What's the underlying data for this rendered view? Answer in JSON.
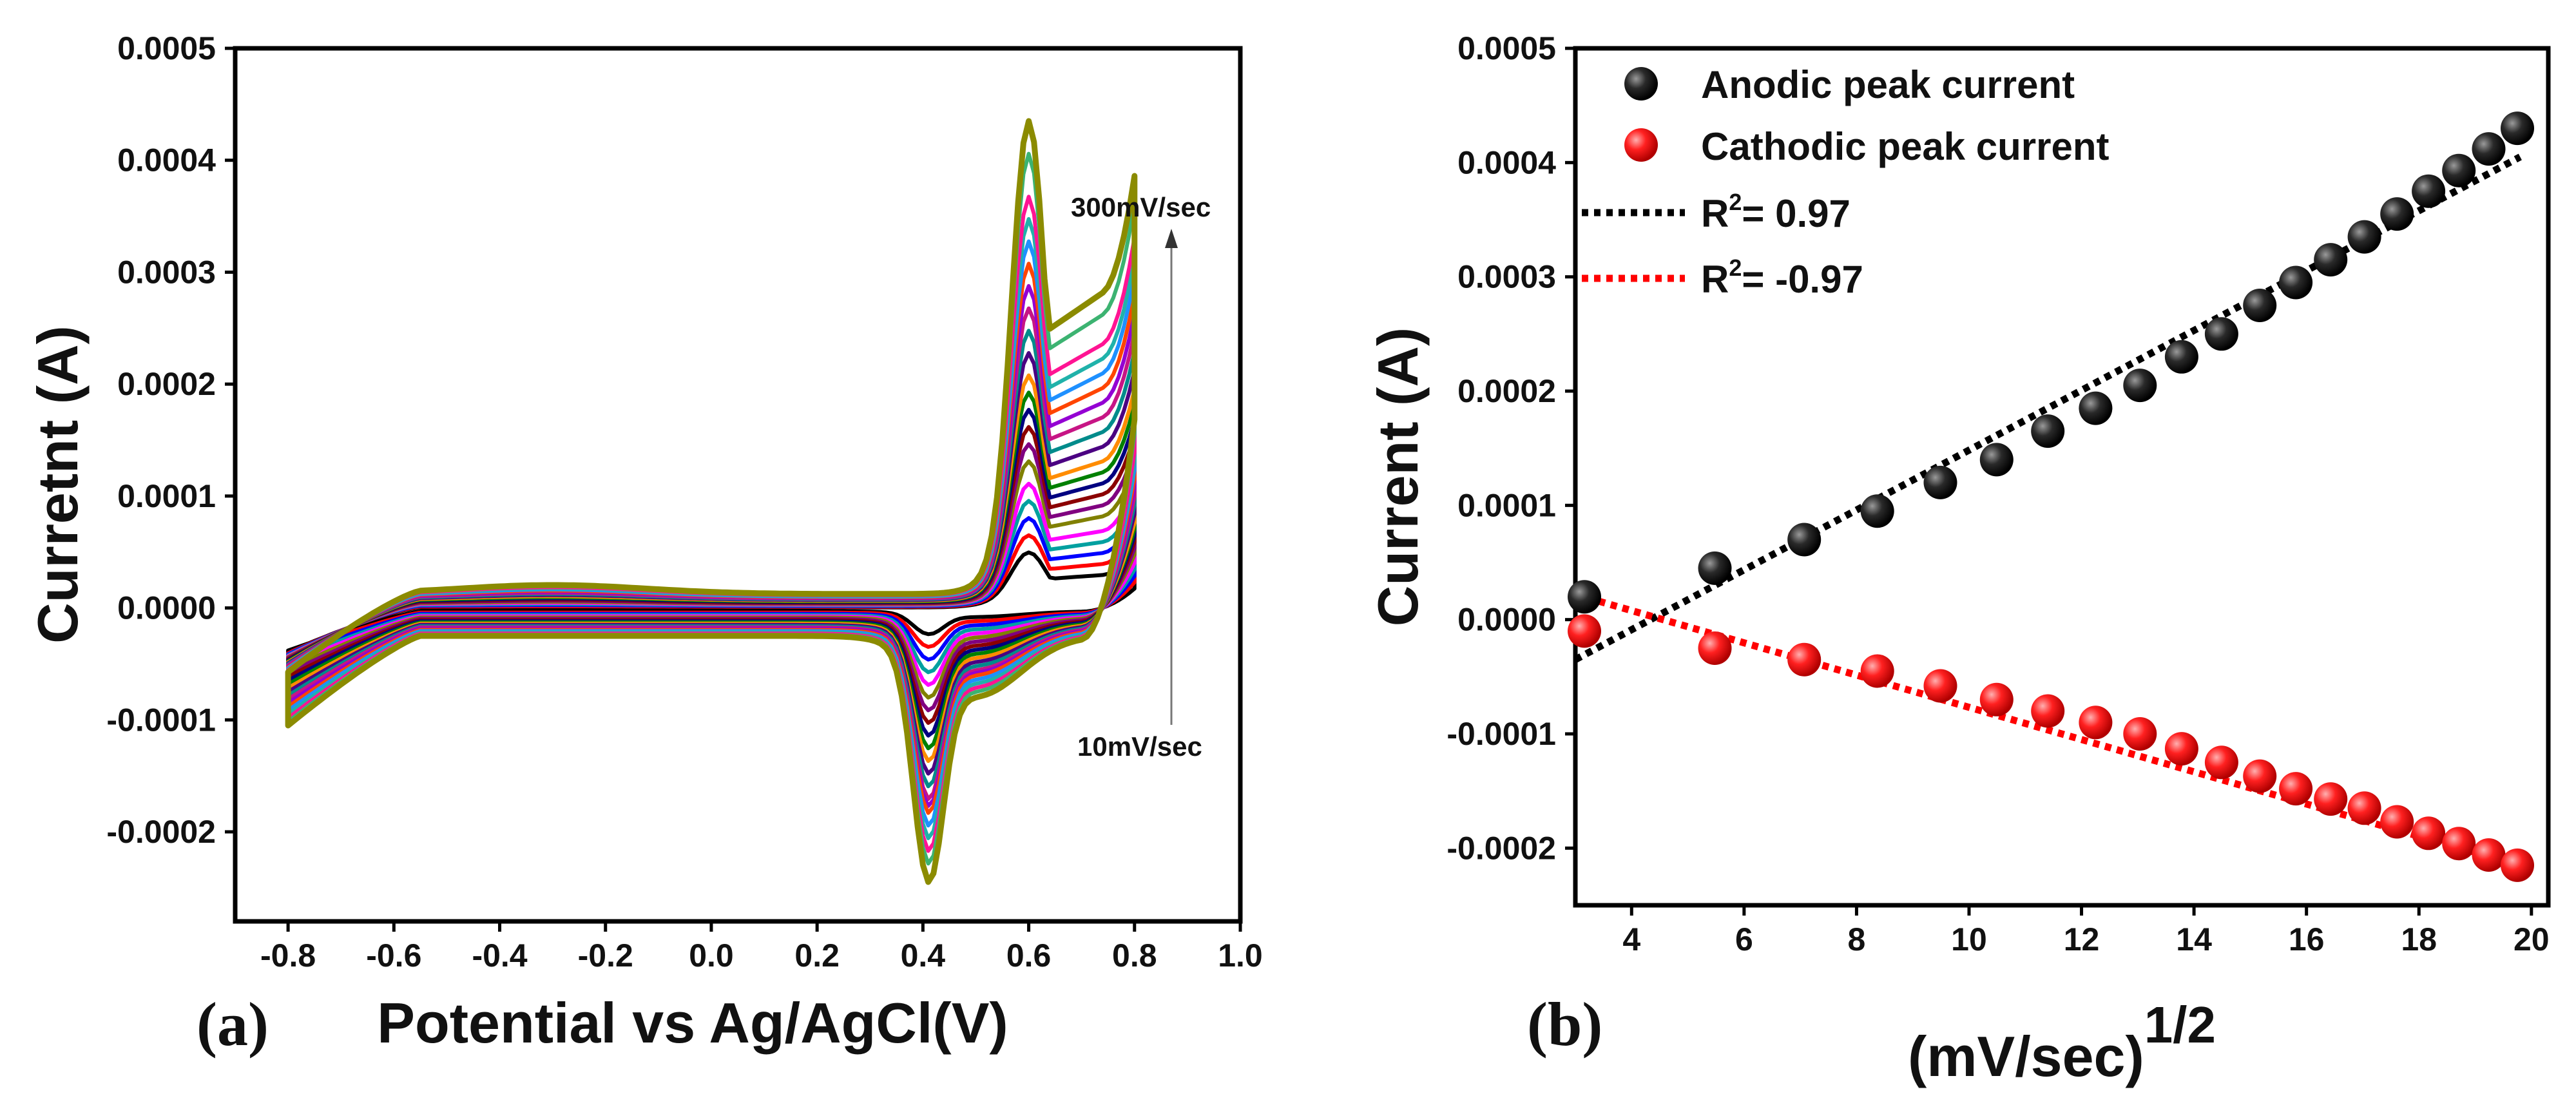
{
  "chart_data": [
    {
      "type": "line",
      "panel_label": "(a)",
      "xlabel": "Potential vs Ag/AgCl(V)",
      "ylabel": "Curretnt (A)",
      "xlim": [
        -0.9,
        1.0
      ],
      "ylim": [
        -0.00028,
        0.0005
      ],
      "x_ticks": [
        "-0.8",
        "-0.6",
        "-0.4",
        "-0.2",
        "0.0",
        "0.2",
        "0.4",
        "0.6",
        "0.8",
        "1.0"
      ],
      "y_ticks": [
        "0.0005",
        "0.0004",
        "0.0003",
        "0.0002",
        "0.0001",
        "0.0000",
        "-0.0001",
        "-0.0002"
      ],
      "annotation_top": "300mV/sec",
      "annotation_bottom": "10mV/sec",
      "series": [
        {
          "name": "10mV/sec",
          "color": "#000000",
          "anodic_peak": 4.5e-05,
          "cathodic_peak": -2e-05
        },
        {
          "name": "",
          "color": "#ff0000",
          "anodic_peak": 6e-05,
          "cathodic_peak": -3e-05
        },
        {
          "name": "",
          "color": "#0000ff",
          "anodic_peak": 7.5e-05,
          "cathodic_peak": -4e-05
        },
        {
          "name": "",
          "color": "#00a0a0",
          "anodic_peak": 9e-05,
          "cathodic_peak": -5e-05
        },
        {
          "name": "",
          "color": "#ff00ff",
          "anodic_peak": 0.000105,
          "cathodic_peak": -6e-05
        },
        {
          "name": "",
          "color": "#808000",
          "anodic_peak": 0.000125,
          "cathodic_peak": -7e-05
        },
        {
          "name": "",
          "color": "#800080",
          "anodic_peak": 0.00014,
          "cathodic_peak": -8e-05
        },
        {
          "name": "",
          "color": "#8b0000",
          "anodic_peak": 0.000155,
          "cathodic_peak": -9e-05
        },
        {
          "name": "",
          "color": "#000080",
          "anodic_peak": 0.00017,
          "cathodic_peak": -0.0001
        },
        {
          "name": "",
          "color": "#008000",
          "anodic_peak": 0.000185,
          "cathodic_peak": -0.00011
        },
        {
          "name": "",
          "color": "#ff8c00",
          "anodic_peak": 0.0002,
          "cathodic_peak": -0.00012
        },
        {
          "name": "",
          "color": "#4b0082",
          "anodic_peak": 0.00022,
          "cathodic_peak": -0.00013
        },
        {
          "name": "",
          "color": "#008b8b",
          "anodic_peak": 0.00024,
          "cathodic_peak": -0.00014
        },
        {
          "name": "",
          "color": "#c71585",
          "anodic_peak": 0.00026,
          "cathodic_peak": -0.00015
        },
        {
          "name": "",
          "color": "#9400d3",
          "anodic_peak": 0.00028,
          "cathodic_peak": -0.000155
        },
        {
          "name": "",
          "color": "#ff4500",
          "anodic_peak": 0.0003,
          "cathodic_peak": -0.00016
        },
        {
          "name": "",
          "color": "#1e90ff",
          "anodic_peak": 0.00032,
          "cathodic_peak": -0.00017
        },
        {
          "name": "",
          "color": "#20b2aa",
          "anodic_peak": 0.00034,
          "cathodic_peak": -0.00018
        },
        {
          "name": "",
          "color": "#ff1493",
          "anodic_peak": 0.00036,
          "cathodic_peak": -0.00019
        },
        {
          "name": "",
          "color": "#3cb371",
          "anodic_peak": 0.0004,
          "cathodic_peak": -0.0002
        },
        {
          "name": "300mV/sec",
          "color": "#8b8b00",
          "anodic_peak": 0.00043,
          "cathodic_peak": -0.000215
        }
      ]
    },
    {
      "type": "scatter",
      "panel_label": "(b)",
      "xlabel": "(mV/sec)",
      "xlabel_exponent": "1/2",
      "ylabel": "Current (A)",
      "xlim": [
        3,
        20.3
      ],
      "ylim": [
        -0.00025,
        0.0005
      ],
      "x_ticks": [
        "4",
        "6",
        "8",
        "10",
        "12",
        "14",
        "16",
        "18",
        "20"
      ],
      "y_ticks": [
        "0.0005",
        "0.0004",
        "0.0003",
        "0.0002",
        "0.0001",
        "0.0000",
        "-0.0001",
        "-0.0002"
      ],
      "legend": [
        "Anodic peak current",
        "Cathodic peak current"
      ],
      "fit_labels": [
        {
          "prefix": "R",
          "sup": "2",
          "suffix": "= 0.97",
          "color": "#000000"
        },
        {
          "prefix": "R",
          "sup": "2",
          "suffix": "= -0.97",
          "color": "#ff0000"
        }
      ],
      "x": [
        3.16,
        5.48,
        7.07,
        8.37,
        9.49,
        10.49,
        11.4,
        12.25,
        13.04,
        13.78,
        14.49,
        15.17,
        15.81,
        16.43,
        17.03,
        17.61,
        18.17,
        18.71,
        19.24,
        19.75
      ],
      "series": [
        {
          "name": "Anodic peak current",
          "color": "#000000",
          "values": [
            2e-05,
            4.5e-05,
            7e-05,
            9.5e-05,
            0.00012,
            0.00014,
            0.000165,
            0.000185,
            0.000205,
            0.00023,
            0.00025,
            0.000275,
            0.000295,
            0.000315,
            0.000335,
            0.000355,
            0.000375,
            0.000393,
            0.000412,
            0.00043
          ],
          "fit": {
            "x": [
              3.0,
              19.8
            ],
            "y": [
              -3.5e-05,
              0.000405
            ]
          }
        },
        {
          "name": "Cathodic peak current",
          "color": "#ff0000",
          "values": [
            -1e-05,
            -2.5e-05,
            -3.5e-05,
            -4.5e-05,
            -5.8e-05,
            -7e-05,
            -8e-05,
            -9e-05,
            -0.0001,
            -0.000113,
            -0.000125,
            -0.000137,
            -0.000148,
            -0.000157,
            -0.000165,
            -0.000177,
            -0.000187,
            -0.000196,
            -0.000206,
            -0.000215
          ],
          "fit": {
            "x": [
              3.0,
              19.8
            ],
            "y": [
              2.2e-05,
              -0.000215
            ]
          }
        }
      ]
    }
  ]
}
